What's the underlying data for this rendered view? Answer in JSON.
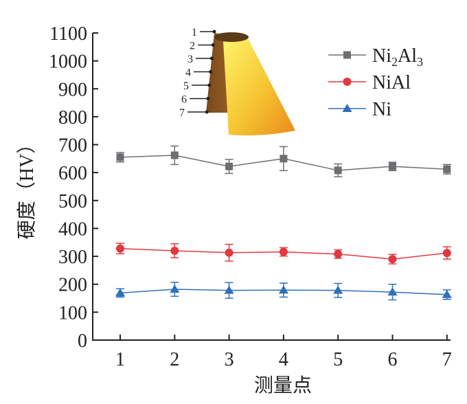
{
  "chart_data": {
    "type": "line",
    "title": "",
    "xlabel": "测量点",
    "ylabel": "硬度（HV）",
    "x": [
      1,
      2,
      3,
      4,
      5,
      6,
      7
    ],
    "xlim": [
      0.5,
      7.5
    ],
    "ylim": [
      0,
      1100
    ],
    "yticks": [
      0,
      100,
      200,
      300,
      400,
      500,
      600,
      700,
      800,
      900,
      1000,
      1100
    ],
    "xticks": [
      1,
      2,
      3,
      4,
      5,
      6,
      7
    ],
    "grid": false,
    "legend_position": "top-right",
    "series": [
      {
        "key": "ni2al3",
        "name_parts": [
          "Ni",
          "2",
          "Al",
          "3"
        ],
        "marker": "square",
        "color": "#6d6e71",
        "values": [
          655,
          662,
          622,
          650,
          608,
          622,
          612
        ],
        "errors": [
          17,
          33,
          25,
          43,
          23,
          15,
          17
        ]
      },
      {
        "key": "nial",
        "name": "NiAl",
        "marker": "circle",
        "color": "#e2383f",
        "values": [
          328,
          320,
          313,
          316,
          308,
          290,
          312
        ],
        "errors": [
          19,
          25,
          30,
          15,
          15,
          17,
          22
        ]
      },
      {
        "key": "ni",
        "name": "Ni",
        "marker": "triangle",
        "color": "#2f6fbb",
        "values": [
          169,
          182,
          178,
          179,
          178,
          172,
          163
        ],
        "errors": [
          15,
          25,
          28,
          25,
          25,
          28,
          17
        ]
      }
    ],
    "inset": {
      "labels": [
        "1",
        "2",
        "3",
        "4",
        "5",
        "6",
        "7"
      ]
    }
  }
}
